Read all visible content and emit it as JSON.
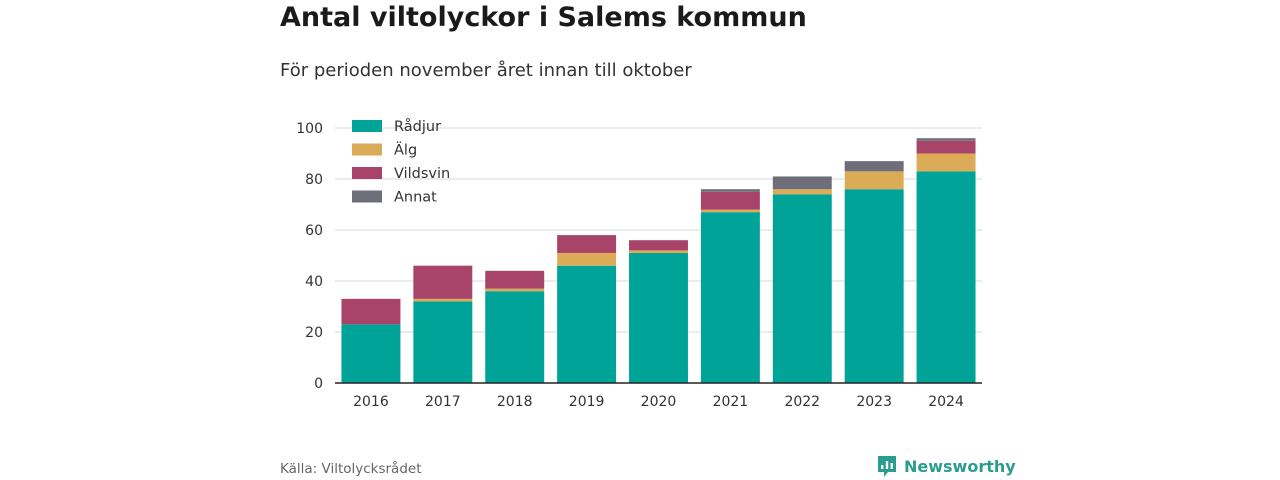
{
  "header": {
    "title": "Antal viltolyckor i Salems kommun",
    "subtitle": "För perioden november året innan till oktober"
  },
  "footer": {
    "source": "Källa: Viltolycksrådet",
    "brand": "Newsworthy",
    "brand_icon": "newsworthy-logo-icon",
    "brand_color": "#2a9d8f"
  },
  "chart_data": {
    "type": "bar",
    "stacked": true,
    "title": "Antal viltolyckor i Salems kommun",
    "subtitle": "För perioden november året innan till oktober",
    "xlabel": "",
    "ylabel": "",
    "ylim": [
      0,
      100
    ],
    "yticks": [
      0,
      20,
      40,
      60,
      80,
      100
    ],
    "grid": true,
    "legend_position": "top-left",
    "categories": [
      "2016",
      "2017",
      "2018",
      "2019",
      "2020",
      "2021",
      "2022",
      "2023",
      "2024"
    ],
    "series": [
      {
        "name": "Rådjur",
        "color": "#00a398",
        "values": [
          23,
          32,
          36,
          46,
          51,
          67,
          74,
          76,
          83
        ]
      },
      {
        "name": "Älg",
        "color": "#dbab57",
        "values": [
          0,
          1,
          1,
          5,
          1,
          1,
          2,
          7,
          7
        ]
      },
      {
        "name": "Vildsvin",
        "color": "#a8446a",
        "values": [
          10,
          13,
          7,
          7,
          4,
          7,
          0,
          0,
          5
        ]
      },
      {
        "name": "Annat",
        "color": "#6e6e78",
        "values": [
          0,
          0,
          0,
          0,
          0,
          1,
          5,
          4,
          1
        ]
      }
    ]
  }
}
